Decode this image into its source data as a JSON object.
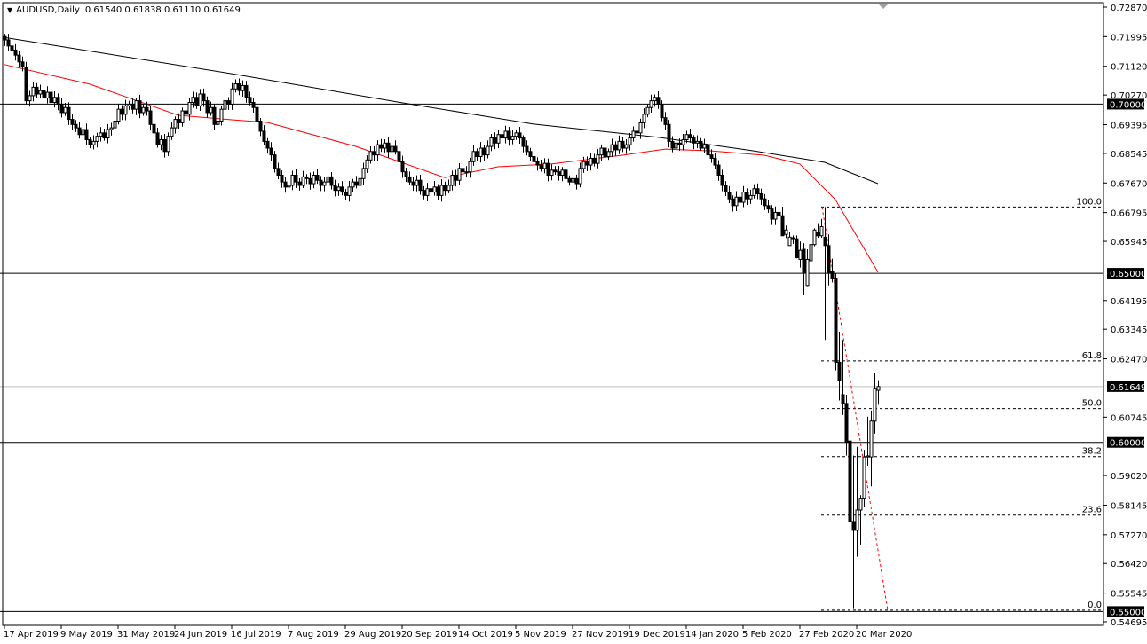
{
  "header": {
    "symbol": "AUDUSD,Daily",
    "ohlc": "0.61540 0.61838 0.61110 0.61649"
  },
  "chart_data": {
    "type": "candlestick",
    "symbol": "AUDUSD",
    "timeframe": "Daily",
    "ylim": [
      0.54695,
      0.7287
    ],
    "y_ticks": [
      "0.72870",
      "0.71995",
      "0.71120",
      "0.70270",
      "0.69395",
      "0.68545",
      "0.67670",
      "0.66795",
      "0.65945",
      "0.64195",
      "0.63345",
      "0.62470",
      "0.60745",
      "0.59020",
      "0.58145",
      "0.57270",
      "0.56420",
      "0.55545",
      "0.54695"
    ],
    "x_ticks": [
      "17 Apr 2019",
      "9 May 2019",
      "31 May 2019",
      "24 Jun 2019",
      "16 Jul 2019",
      "7 Aug 2019",
      "29 Aug 2019",
      "20 Sep 2019",
      "14 Oct 2019",
      "5 Nov 2019",
      "27 Nov 2019",
      "19 Dec 2019",
      "14 Jan 2020",
      "5 Feb 2020",
      "27 Feb 2020",
      "20 Mar 2020"
    ],
    "x_tick_every_bars": 16,
    "closes": [
      0.719,
      0.7172,
      0.716,
      0.7145,
      0.7125,
      0.711,
      0.701,
      0.7025,
      0.705,
      0.703,
      0.704,
      0.7018,
      0.7035,
      0.7005,
      0.702,
      0.7,
      0.6975,
      0.699,
      0.6955,
      0.694,
      0.693,
      0.691,
      0.6925,
      0.6895,
      0.688,
      0.689,
      0.6905,
      0.6915,
      0.69,
      0.6925,
      0.693,
      0.695,
      0.6985,
      0.697,
      0.6995,
      0.7,
      0.6985,
      0.701,
      0.6975,
      0.699,
      0.698,
      0.694,
      0.6915,
      0.688,
      0.6895,
      0.686,
      0.6905,
      0.693,
      0.6955,
      0.6945,
      0.698,
      0.697,
      0.7005,
      0.702,
      0.6995,
      0.703,
      0.701,
      0.6975,
      0.699,
      0.694,
      0.695,
      0.6985,
      0.701,
      0.7,
      0.7045,
      0.706,
      0.704,
      0.7055,
      0.702,
      0.7005,
      0.699,
      0.695,
      0.692,
      0.689,
      0.687,
      0.685,
      0.681,
      0.679,
      0.677,
      0.6755,
      0.676,
      0.679,
      0.677,
      0.676,
      0.6785,
      0.678,
      0.6765,
      0.679,
      0.6775,
      0.676,
      0.677,
      0.6785,
      0.676,
      0.6745,
      0.6755,
      0.674,
      0.673,
      0.6755,
      0.677,
      0.676,
      0.678,
      0.681,
      0.6835,
      0.686,
      0.685,
      0.688,
      0.687,
      0.6885,
      0.686,
      0.6875,
      0.686,
      0.683,
      0.68,
      0.6785,
      0.677,
      0.676,
      0.6775,
      0.6745,
      0.673,
      0.675,
      0.674,
      0.6755,
      0.673,
      0.676,
      0.6745,
      0.676,
      0.679,
      0.6775,
      0.681,
      0.68,
      0.68,
      0.683,
      0.686,
      0.6845,
      0.687,
      0.685,
      0.6875,
      0.69,
      0.6885,
      0.691,
      0.69,
      0.692,
      0.6895,
      0.6905,
      0.6915,
      0.69,
      0.6875,
      0.686,
      0.6845,
      0.683,
      0.682,
      0.681,
      0.6825,
      0.679,
      0.6805,
      0.68,
      0.679,
      0.6805,
      0.678,
      0.677,
      0.678,
      0.6765,
      0.681,
      0.683,
      0.682,
      0.684,
      0.6825,
      0.685,
      0.687,
      0.6845,
      0.686,
      0.688,
      0.6865,
      0.689,
      0.687,
      0.688,
      0.69,
      0.692,
      0.6915,
      0.6945,
      0.697,
      0.699,
      0.701,
      0.702,
      0.7,
      0.696,
      0.694,
      0.689,
      0.687,
      0.6885,
      0.688,
      0.6895,
      0.691,
      0.69,
      0.6885,
      0.689,
      0.687,
      0.688,
      0.685,
      0.684,
      0.682,
      0.679,
      0.676,
      0.674,
      0.672,
      0.67,
      0.6725,
      0.671,
      0.674,
      0.672,
      0.673,
      0.675,
      0.6735,
      0.672,
      0.67,
      0.669,
      0.666,
      0.668,
      0.667
    ],
    "recent_ohlc": [
      [
        0.667,
        0.6697,
        0.6611,
        0.6611
      ],
      [
        0.6615,
        0.6641,
        0.6604,
        0.6628
      ],
      [
        0.6582,
        0.6622,
        0.6582,
        0.6607
      ],
      [
        0.6605,
        0.6612,
        0.6587,
        0.6605
      ],
      [
        0.6602,
        0.6612,
        0.6544,
        0.6546
      ],
      [
        0.6541,
        0.6594,
        0.6517,
        0.6568
      ],
      [
        0.6571,
        0.6589,
        0.6436,
        0.6502
      ],
      [
        0.6464,
        0.6571,
        0.6462,
        0.6541
      ],
      [
        0.6537,
        0.6648,
        0.6513,
        0.6585
      ],
      [
        0.6585,
        0.6633,
        0.658,
        0.6628
      ],
      [
        0.6622,
        0.6648,
        0.6605,
        0.6611
      ],
      [
        0.6611,
        0.6661,
        0.6605,
        0.6638
      ],
      [
        0.6607,
        0.6696,
        0.6303,
        0.6582
      ],
      [
        0.6582,
        0.6615,
        0.6464,
        0.6502
      ],
      [
        0.6505,
        0.6543,
        0.6473,
        0.6486
      ],
      [
        0.6486,
        0.6499,
        0.6213,
        0.6237
      ],
      [
        0.6237,
        0.6327,
        0.6124,
        0.6182
      ],
      [
        0.6141,
        0.6303,
        0.6081,
        0.6115
      ],
      [
        0.6115,
        0.6141,
        0.5961,
        0.6001
      ],
      [
        0.6004,
        0.6032,
        0.5698,
        0.5766
      ],
      [
        0.5766,
        0.5961,
        0.551,
        0.574
      ],
      [
        0.574,
        0.5987,
        0.5662,
        0.58
      ],
      [
        0.58,
        0.5844,
        0.5698,
        0.5835
      ],
      [
        0.5835,
        0.5978,
        0.5809,
        0.5957
      ],
      [
        0.5957,
        0.6076,
        0.5931,
        0.596
      ],
      [
        0.5957,
        0.6094,
        0.587,
        0.6063
      ],
      [
        0.6063,
        0.6206,
        0.6026,
        0.616
      ],
      [
        0.6154,
        0.6184,
        0.6111,
        0.6165
      ]
    ],
    "moving_averages": [
      {
        "color": "#000000",
        "points": [
          [
            0,
            0.7197
          ],
          [
            64,
            0.709
          ],
          [
            112,
            0.7004
          ],
          [
            149,
            0.6941
          ],
          [
            184,
            0.6902
          ],
          [
            211,
            0.6862
          ],
          [
            231,
            0.6828
          ],
          [
            246,
            0.6765
          ]
        ]
      },
      {
        "color": "#ff0000",
        "points": [
          [
            0,
            0.7117
          ],
          [
            24,
            0.7059
          ],
          [
            49,
            0.6967
          ],
          [
            64,
            0.6954
          ],
          [
            74,
            0.6946
          ],
          [
            99,
            0.6875
          ],
          [
            124,
            0.6783
          ],
          [
            139,
            0.6815
          ],
          [
            154,
            0.6823
          ],
          [
            174,
            0.6849
          ],
          [
            186,
            0.6867
          ],
          [
            199,
            0.6862
          ],
          [
            214,
            0.6849
          ],
          [
            224,
            0.6823
          ],
          [
            234,
            0.6718
          ],
          [
            246,
            0.6503
          ]
        ]
      }
    ],
    "horizontal_lines": [
      0.7,
      0.65,
      0.6,
      0.55
    ],
    "horizontal_line_labels": [
      "0.70000",
      "0.65000",
      "0.60000",
      "0.55000"
    ],
    "bid": {
      "value": 0.61649,
      "label": "0.61649",
      "color": "#c0c0c0"
    },
    "fibonacci": {
      "high": 0.6696,
      "low": 0.5504,
      "color": "#000000",
      "trend_color": "#ff0000",
      "levels": [
        {
          "label": "100.0",
          "price": 0.6696
        },
        {
          "label": "61.8",
          "price": 0.6241
        },
        {
          "label": "50.0",
          "price": 0.61
        },
        {
          "label": "38.2",
          "price": 0.5958
        },
        {
          "label": "23.6",
          "price": 0.5785
        },
        {
          "label": "0.0",
          "price": 0.5504
        }
      ]
    }
  }
}
